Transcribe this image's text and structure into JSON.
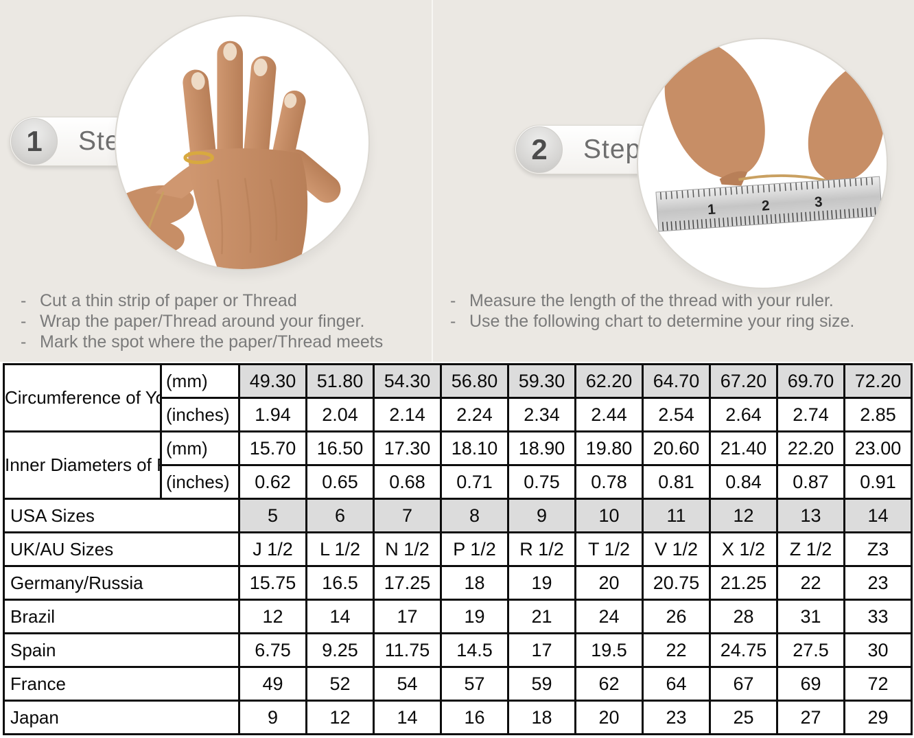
{
  "steps": [
    {
      "number": "1",
      "label": "Step",
      "instructions": [
        "Cut a thin strip of paper or Thread",
        "Wrap the paper/Thread around your finger.",
        "Mark the spot where the paper/Thread meets"
      ]
    },
    {
      "number": "2",
      "label": "Step",
      "instructions": [
        "Measure the length of the thread with your ruler.",
        "Use the following chart to determine your ring size."
      ]
    }
  ],
  "illustration": {
    "left_photo": "hand-with-ring-being-measured-with-thread",
    "right_photo": "hands-measuring-thread-against-ruler",
    "ruler_numbers": [
      "1",
      "2",
      "3"
    ]
  },
  "chart_data": {
    "type": "table",
    "row_groups": [
      {
        "label": "Circumference of Your Finger",
        "rows": [
          {
            "unit": "(mm)",
            "highlight": true,
            "values": [
              "49.30",
              "51.80",
              "54.30",
              "56.80",
              "59.30",
              "62.20",
              "64.70",
              "67.20",
              "69.70",
              "72.20"
            ]
          },
          {
            "unit": "(inches)",
            "highlight": false,
            "values": [
              "1.94",
              "2.04",
              "2.14",
              "2.24",
              "2.34",
              "2.44",
              "2.54",
              "2.64",
              "2.74",
              "2.85"
            ]
          }
        ]
      },
      {
        "label": "Inner Diameters of Rings",
        "rows": [
          {
            "unit": "(mm)",
            "highlight": false,
            "values": [
              "15.70",
              "16.50",
              "17.30",
              "18.10",
              "18.90",
              "19.80",
              "20.60",
              "21.40",
              "22.20",
              "23.00"
            ]
          },
          {
            "unit": "(inches)",
            "highlight": false,
            "values": [
              "0.62",
              "0.65",
              "0.68",
              "0.71",
              "0.75",
              "0.78",
              "0.81",
              "0.84",
              "0.87",
              "0.91"
            ]
          }
        ]
      }
    ],
    "size_rows": [
      {
        "label": "USA Sizes",
        "highlight": true,
        "values": [
          "5",
          "6",
          "7",
          "8",
          "9",
          "10",
          "11",
          "12",
          "13",
          "14"
        ]
      },
      {
        "label": "UK/AU Sizes",
        "highlight": false,
        "values": [
          "J 1/2",
          "L 1/2",
          "N 1/2",
          "P 1/2",
          "R 1/2",
          "T 1/2",
          "V 1/2",
          "X 1/2",
          "Z 1/2",
          "Z3"
        ]
      },
      {
        "label": "Germany/Russia",
        "highlight": false,
        "values": [
          "15.75",
          "16.5",
          "17.25",
          "18",
          "19",
          "20",
          "20.75",
          "21.25",
          "22",
          "23"
        ]
      },
      {
        "label": "Brazil",
        "highlight": false,
        "values": [
          "12",
          "14",
          "17",
          "19",
          "21",
          "24",
          "26",
          "28",
          "31",
          "33"
        ]
      },
      {
        "label": "Spain",
        "highlight": false,
        "values": [
          "6.75",
          "9.25",
          "11.75",
          "14.5",
          "17",
          "19.5",
          "22",
          "24.75",
          "27.5",
          "30"
        ]
      },
      {
        "label": "France",
        "highlight": false,
        "values": [
          "49",
          "52",
          "54",
          "57",
          "59",
          "62",
          "64",
          "67",
          "69",
          "72"
        ]
      },
      {
        "label": "Japan",
        "highlight": false,
        "values": [
          "9",
          "12",
          "14",
          "16",
          "18",
          "20",
          "23",
          "25",
          "27",
          "29"
        ]
      }
    ]
  },
  "colors": {
    "page_background": "#ebe8e3",
    "table_highlight": "#dcdcdc",
    "table_border": "#0d0d0d",
    "text_gray": "#7a7a7a",
    "skin_tone": "#c78e66",
    "thread_gold": "#c9a061",
    "ring_gold": "#d8a93f"
  }
}
